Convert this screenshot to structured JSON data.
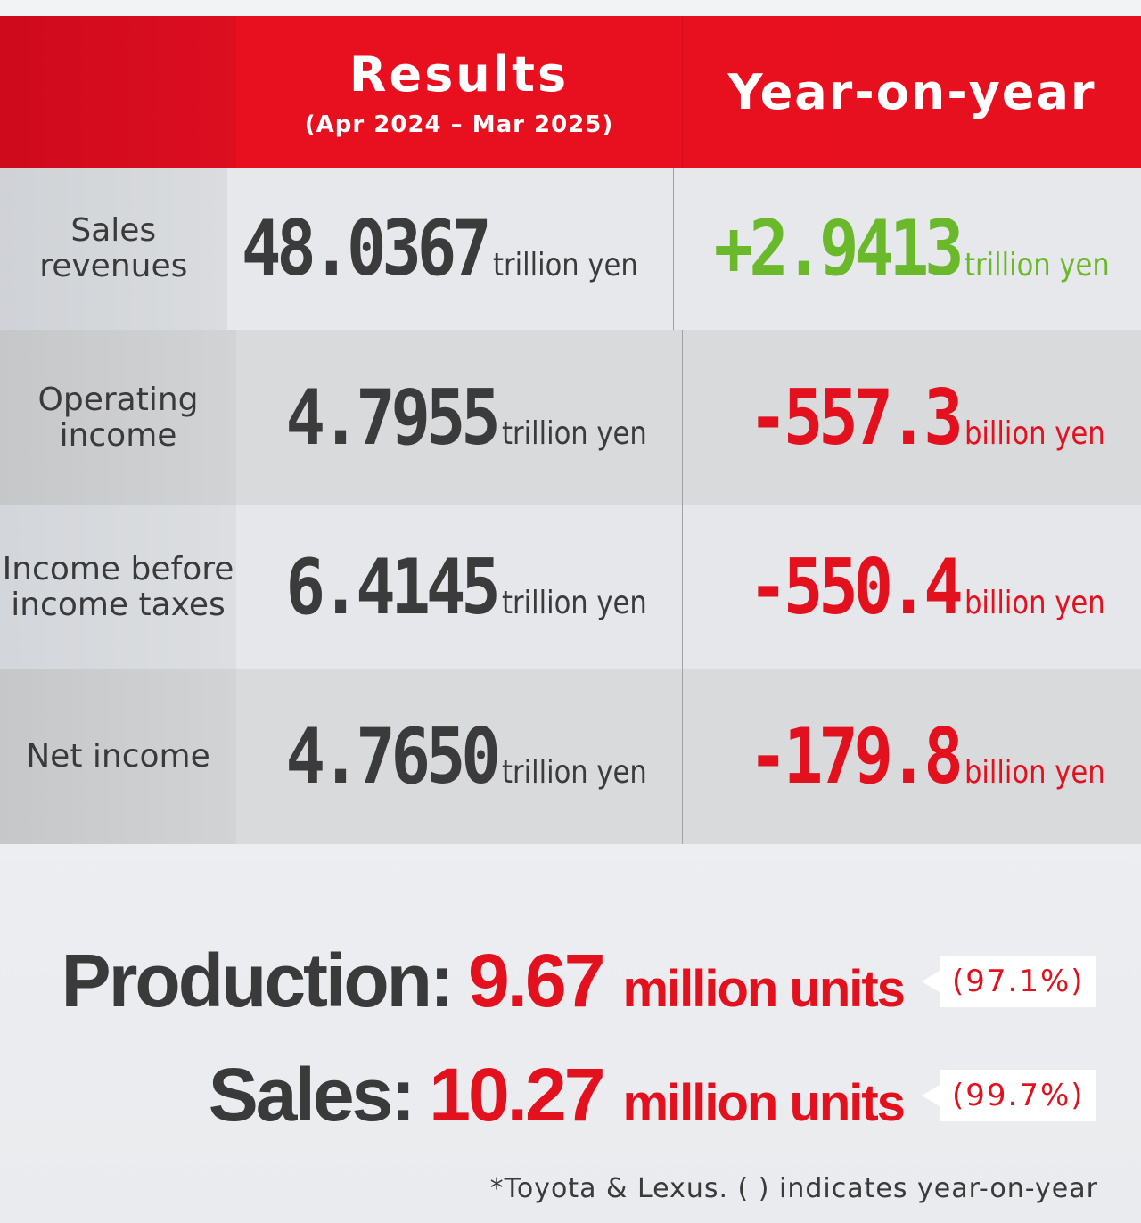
{
  "table": {
    "header": {
      "results_title": "Results",
      "results_period": "(Apr 2024 – Mar 2025)",
      "yoy_title": "Year-on-year"
    },
    "rows": [
      {
        "label": "Sales\nrevenues",
        "result_value": "48.0367",
        "result_unit": "trillion yen",
        "yoy_value": "+2.9413",
        "yoy_unit": "trillion yen",
        "yoy_color": "#6ab92a"
      },
      {
        "label": "Operating\nincome",
        "result_value": "4.7955",
        "result_unit": "trillion yen",
        "yoy_value": "-557.3",
        "yoy_unit": "billion yen",
        "yoy_color": "#e3101e"
      },
      {
        "label": "Income before\nincome taxes",
        "result_value": "6.4145",
        "result_unit": "trillion yen",
        "yoy_value": "-550.4",
        "yoy_unit": "billion yen",
        "yoy_color": "#e3101e"
      },
      {
        "label": "Net income",
        "result_value": "4.7650",
        "result_unit": "trillion yen",
        "yoy_value": "-179.8",
        "yoy_unit": "billion yen",
        "yoy_color": "#e3101e"
      }
    ]
  },
  "production": {
    "label": "Production:",
    "value": "9.67",
    "unit": "million units",
    "yoy": "(97.1%)"
  },
  "sales": {
    "label": "Sales:",
    "value": "10.27",
    "unit": "million units",
    "yoy": "(99.7%)"
  },
  "footnote": "*Toyota & Lexus. ( ) indicates year-on-year",
  "colors": {
    "brand_red": "#e8101f",
    "positive_green": "#6ab92a",
    "negative_red": "#e3101e"
  }
}
